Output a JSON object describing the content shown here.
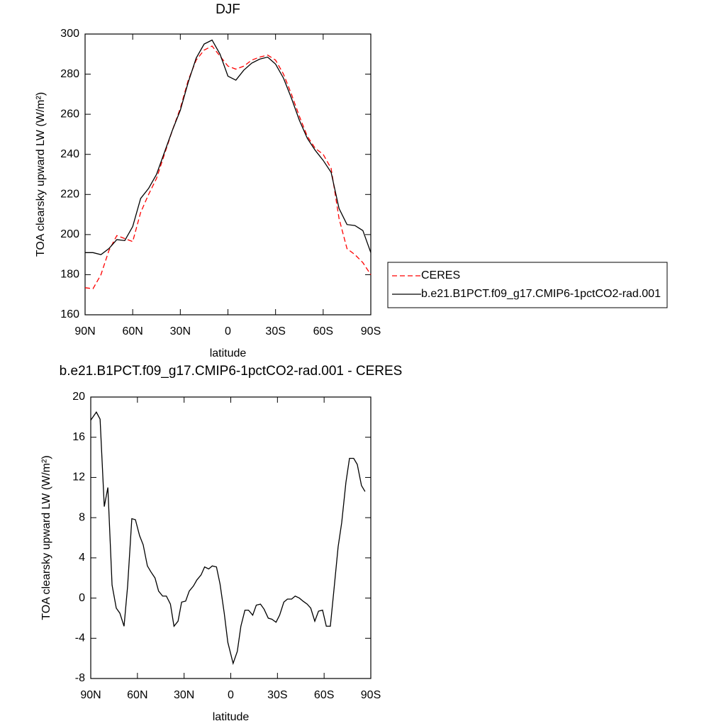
{
  "chart_data": [
    {
      "type": "line",
      "title": "DJF",
      "xlabel": "latitude",
      "ylabel": "TOA clearsky upward LW (W/m²)",
      "x": [
        90,
        85,
        80,
        75,
        70,
        65,
        60,
        55,
        50,
        45,
        40,
        35,
        30,
        25,
        20,
        15,
        10,
        5,
        0,
        -5,
        -10,
        -15,
        -20,
        -25,
        -30,
        -35,
        -40,
        -45,
        -50,
        -55,
        -60,
        -65,
        -70,
        -75,
        -80,
        -85,
        -90
      ],
      "series": [
        {
          "name": "CERES",
          "color": "#ff0000",
          "line_style": "dashed",
          "values": [
            173.5,
            173,
            180,
            192,
            199.5,
            198,
            196.5,
            211,
            220,
            228,
            240,
            252,
            263,
            277,
            287,
            292,
            294,
            289,
            284,
            282.5,
            284,
            287,
            288.5,
            289.5,
            287,
            280,
            270,
            259,
            249,
            243,
            240,
            233,
            208,
            193,
            190,
            186,
            180
          ]
        },
        {
          "name": "b.e21.B1PCT.f09_g17.CMIP6-1pctCO2-rad.001",
          "color": "#000000",
          "line_style": "solid",
          "values": [
            191,
            191,
            190,
            193,
            197.5,
            197,
            204,
            218,
            223,
            230,
            241,
            252,
            262,
            276,
            288,
            295,
            297,
            290,
            279,
            277,
            282,
            285.5,
            287.5,
            288.5,
            285,
            278,
            268,
            257,
            248,
            242,
            237,
            231,
            213,
            205,
            204.5,
            202,
            191
          ]
        }
      ],
      "xlim": [
        90,
        -90
      ],
      "xticks": [
        {
          "value": 90,
          "label": "90N"
        },
        {
          "value": 60,
          "label": "60N"
        },
        {
          "value": 30,
          "label": "30N"
        },
        0,
        {
          "value": -30,
          "label": "30S"
        },
        {
          "value": -60,
          "label": "60S"
        },
        {
          "value": -90,
          "label": "90S"
        }
      ],
      "ylim": [
        160,
        300
      ],
      "yticks": [
        160,
        180,
        200,
        220,
        240,
        260,
        280,
        300
      ],
      "legend_position": "right"
    },
    {
      "type": "line",
      "title": "b.e21.B1PCT.f09_g17.CMIP6-1pctCO2-rad.001 - CERES",
      "xlabel": "latitude",
      "ylabel": "TOA clearsky upward LW (W/m²)",
      "x": [
        90,
        86.4,
        84,
        81.3,
        79,
        76.3,
        73.6,
        71.3,
        68.6,
        66.3,
        63.6,
        61.3,
        58.6,
        56.3,
        53.6,
        51.3,
        48.7,
        46.4,
        43.8,
        41.4,
        38.8,
        36.5,
        33.9,
        31.6,
        29,
        26.7,
        24,
        21.8,
        19.1,
        16.8,
        14.2,
        11.9,
        9.2,
        6.9,
        4.2,
        1.9,
        -1.5,
        -4.2,
        -6.5,
        -9.1,
        -11.4,
        -14.1,
        -16.4,
        -19.1,
        -21.4,
        -24.1,
        -26.4,
        -29.1,
        -31.4,
        -34.1,
        -36.4,
        -39.1,
        -41.4,
        -44.1,
        -46.4,
        -49.1,
        -51.4,
        -54,
        -56.4,
        -59,
        -61.4,
        -64,
        -66.3,
        -69,
        -71.3,
        -74,
        -76.3,
        -79,
        -81.3,
        -84,
        -86.3
      ],
      "series": [
        {
          "color": "#000000",
          "line_style": "solid",
          "values": [
            17.7,
            18.5,
            17.8,
            9.1,
            11,
            1.3,
            -1,
            -1.5,
            -2.8,
            1.2,
            7.9,
            7.8,
            6.2,
            5.3,
            3.2,
            2.6,
            2,
            0.7,
            0.2,
            0.2,
            -0.6,
            -2.8,
            -2.3,
            -0.4,
            -0.3,
            0.7,
            1.2,
            1.8,
            2.3,
            3.1,
            2.9,
            3.2,
            3.1,
            1.4,
            -1.5,
            -4.4,
            -6.5,
            -5.3,
            -2.8,
            -1.2,
            -1.2,
            -1.7,
            -0.7,
            -0.6,
            -1.1,
            -2,
            -2.1,
            -2.4,
            -1.7,
            -0.4,
            -0.1,
            -0.1,
            0.2,
            0,
            -0.3,
            -0.6,
            -1,
            -2.3,
            -1.3,
            -1.2,
            -2.8,
            -2.8,
            0.8,
            5.1,
            7.5,
            11.5,
            13.9,
            13.9,
            13.3,
            11.2,
            10.6
          ]
        }
      ],
      "xlim": [
        90,
        -90
      ],
      "xticks": [
        {
          "value": 90,
          "label": "90N"
        },
        {
          "value": 60,
          "label": "60N"
        },
        {
          "value": 30,
          "label": "30N"
        },
        0,
        {
          "value": -30,
          "label": "30S"
        },
        {
          "value": -60,
          "label": "60S"
        },
        {
          "value": -90,
          "label": "90S"
        }
      ],
      "ylim": [
        -8,
        20
      ],
      "yticks": [
        -8,
        -4,
        0,
        4,
        8,
        12,
        16,
        20
      ]
    }
  ]
}
